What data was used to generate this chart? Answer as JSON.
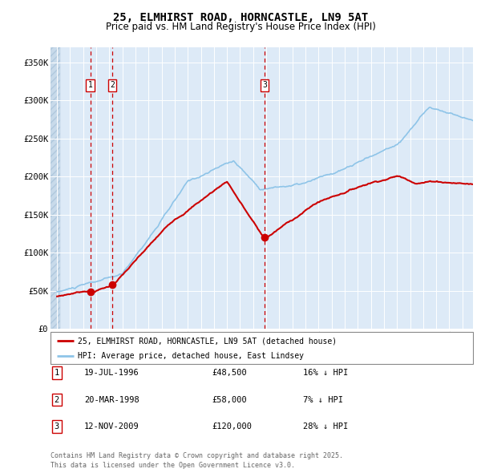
{
  "title": "25, ELMHIRST ROAD, HORNCASTLE, LN9 5AT",
  "subtitle": "Price paid vs. HM Land Registry's House Price Index (HPI)",
  "ylabel_ticks": [
    "£0",
    "£50K",
    "£100K",
    "£150K",
    "£200K",
    "£250K",
    "£300K",
    "£350K"
  ],
  "ytick_values": [
    0,
    50000,
    100000,
    150000,
    200000,
    250000,
    300000,
    350000
  ],
  "ylim": [
    0,
    370000
  ],
  "xlim_start": 1993.5,
  "xlim_end": 2025.8,
  "hpi_color": "#8ec4e8",
  "price_color": "#cc0000",
  "sale_marker_color": "#cc0000",
  "dashed_line_color": "#cc0000",
  "plot_bg_color": "#ddeaf7",
  "legend_label_red": "25, ELMHIRST ROAD, HORNCASTLE, LN9 5AT (detached house)",
  "legend_label_blue": "HPI: Average price, detached house, East Lindsey",
  "sales": [
    {
      "label": "1",
      "date": 1996.54,
      "price": 48500,
      "note": "19-JUL-1996",
      "price_str": "£48,500",
      "pct": "16% ↓ HPI"
    },
    {
      "label": "2",
      "date": 1998.22,
      "price": 58000,
      "note": "20-MAR-1998",
      "price_str": "£58,000",
      "pct": "7% ↓ HPI"
    },
    {
      "label": "3",
      "date": 2009.87,
      "price": 120000,
      "note": "12-NOV-2009",
      "price_str": "£120,000",
      "pct": "28% ↓ HPI"
    }
  ],
  "footer": "Contains HM Land Registry data © Crown copyright and database right 2025.\nThis data is licensed under the Open Government Licence v3.0.",
  "title_fontsize": 10,
  "subtitle_fontsize": 8.5
}
